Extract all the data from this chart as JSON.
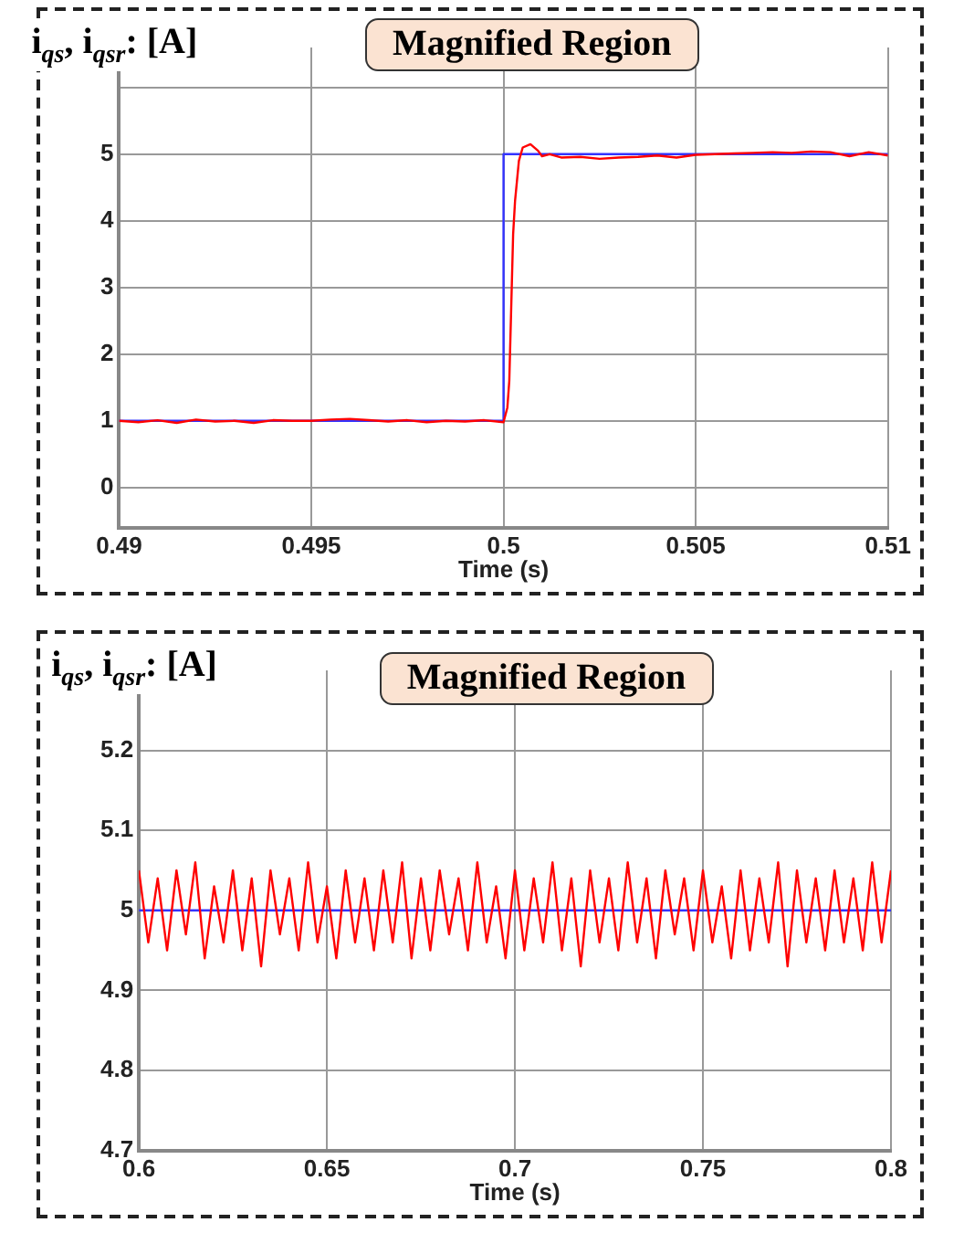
{
  "chart_data": [
    {
      "type": "line",
      "ylabel": "i$_{qs}$, i$_{qsr}$: [A]",
      "xlabel": "Time (s)",
      "annotations": [
        "Magnified Region"
      ],
      "xlim": [
        0.49,
        0.51
      ],
      "xticks": [
        0.49,
        0.495,
        0.5,
        0.505,
        0.51
      ],
      "ylim": [
        -0.6,
        6.6
      ],
      "yticks": [
        0,
        1,
        2,
        3,
        4,
        5,
        {
          "value": 6,
          "label": null
        }
      ],
      "grid": true,
      "legend": false,
      "marker": "none",
      "line_style": "solid",
      "series": [
        {
          "color": "#ff0000",
          "x": [
            0.49,
            0.4905,
            0.491,
            0.4915,
            0.492,
            0.4925,
            0.493,
            0.4935,
            0.494,
            0.4945,
            0.495,
            0.4955,
            0.496,
            0.4965,
            0.497,
            0.4975,
            0.498,
            0.4985,
            0.499,
            0.4995,
            0.5,
            0.5001,
            0.50015,
            0.5002,
            0.50025,
            0.5003,
            0.5004,
            0.5005,
            0.5007,
            0.5009,
            0.501,
            0.5012,
            0.5015,
            0.502,
            0.5025,
            0.503,
            0.5035,
            0.504,
            0.5045,
            0.505,
            0.5055,
            0.506,
            0.5065,
            0.507,
            0.5075,
            0.508,
            0.5085,
            0.509,
            0.5095,
            0.51
          ],
          "values": [
            1.0,
            0.98,
            1.01,
            0.97,
            1.02,
            0.99,
            1.0,
            0.97,
            1.01,
            1.0,
            1.0,
            1.02,
            1.03,
            1.01,
            0.99,
            1.01,
            0.98,
            1.0,
            0.99,
            1.01,
            0.98,
            1.2,
            1.6,
            2.7,
            3.8,
            4.3,
            4.9,
            5.1,
            5.15,
            5.05,
            4.97,
            5.0,
            4.95,
            4.96,
            4.93,
            4.95,
            4.96,
            4.98,
            4.95,
            4.99,
            5.0,
            5.01,
            5.02,
            5.03,
            5.02,
            5.04,
            5.03,
            4.97,
            5.03,
            4.98
          ]
        },
        {
          "color": "#3333ff",
          "x": [
            0.49,
            0.5,
            0.5,
            0.51
          ],
          "values": [
            1,
            1,
            5,
            5
          ]
        }
      ]
    },
    {
      "type": "line",
      "ylabel": "i$_{qs}$, i$_{qsr}$: [A]",
      "xlabel": "Time (s)",
      "annotations": [
        "Magnified Region"
      ],
      "xlim": [
        0.6,
        0.8
      ],
      "xticks": [
        0.6,
        0.65,
        0.7,
        0.75,
        0.8
      ],
      "ylim": [
        4.7,
        5.3
      ],
      "yticks": [
        4.7,
        4.8,
        4.9,
        5,
        5.1,
        5.2
      ],
      "grid": true,
      "legend": false,
      "marker": "none",
      "line_style": "solid",
      "series": [
        {
          "color": "#ff0000",
          "x": [
            0.6,
            0.6025,
            0.605,
            0.6075,
            0.61,
            0.6125,
            0.615,
            0.6175,
            0.62,
            0.6225,
            0.625,
            0.6275,
            0.63,
            0.6325,
            0.635,
            0.6375,
            0.64,
            0.6425,
            0.645,
            0.6475,
            0.65,
            0.6525,
            0.655,
            0.6575,
            0.66,
            0.6625,
            0.665,
            0.6675,
            0.67,
            0.6725,
            0.675,
            0.6775,
            0.68,
            0.6825,
            0.685,
            0.6875,
            0.69,
            0.6925,
            0.695,
            0.6975,
            0.7,
            0.7025,
            0.705,
            0.7075,
            0.71,
            0.7125,
            0.715,
            0.7175,
            0.72,
            0.7225,
            0.725,
            0.7275,
            0.73,
            0.7325,
            0.735,
            0.7375,
            0.74,
            0.7425,
            0.745,
            0.7475,
            0.75,
            0.7525,
            0.755,
            0.7575,
            0.76,
            0.7625,
            0.765,
            0.7675,
            0.77,
            0.7725,
            0.775,
            0.7775,
            0.78,
            0.7825,
            0.785,
            0.7875,
            0.79,
            0.7925,
            0.795,
            0.7975,
            0.8
          ],
          "values": [
            5.05,
            4.96,
            5.04,
            4.95,
            5.05,
            4.97,
            5.06,
            4.94,
            5.03,
            4.96,
            5.05,
            4.95,
            5.04,
            4.93,
            5.05,
            4.97,
            5.04,
            4.95,
            5.06,
            4.96,
            5.03,
            4.94,
            5.05,
            4.96,
            5.04,
            4.95,
            5.05,
            4.96,
            5.06,
            4.94,
            5.04,
            4.95,
            5.05,
            4.97,
            5.04,
            4.95,
            5.06,
            4.96,
            5.03,
            4.94,
            5.05,
            4.95,
            5.04,
            4.96,
            5.06,
            4.95,
            5.04,
            4.93,
            5.05,
            4.96,
            5.04,
            4.95,
            5.06,
            4.96,
            5.04,
            4.94,
            5.05,
            4.97,
            5.04,
            4.95,
            5.05,
            4.96,
            5.03,
            4.94,
            5.05,
            4.95,
            5.04,
            4.96,
            5.06,
            4.93,
            5.05,
            4.96,
            5.04,
            4.95,
            5.05,
            4.96,
            5.04,
            4.95,
            5.06,
            4.96,
            5.05
          ]
        },
        {
          "color": "#3333ff",
          "x": [
            0.6,
            0.8
          ],
          "values": [
            5,
            5
          ]
        }
      ]
    }
  ]
}
